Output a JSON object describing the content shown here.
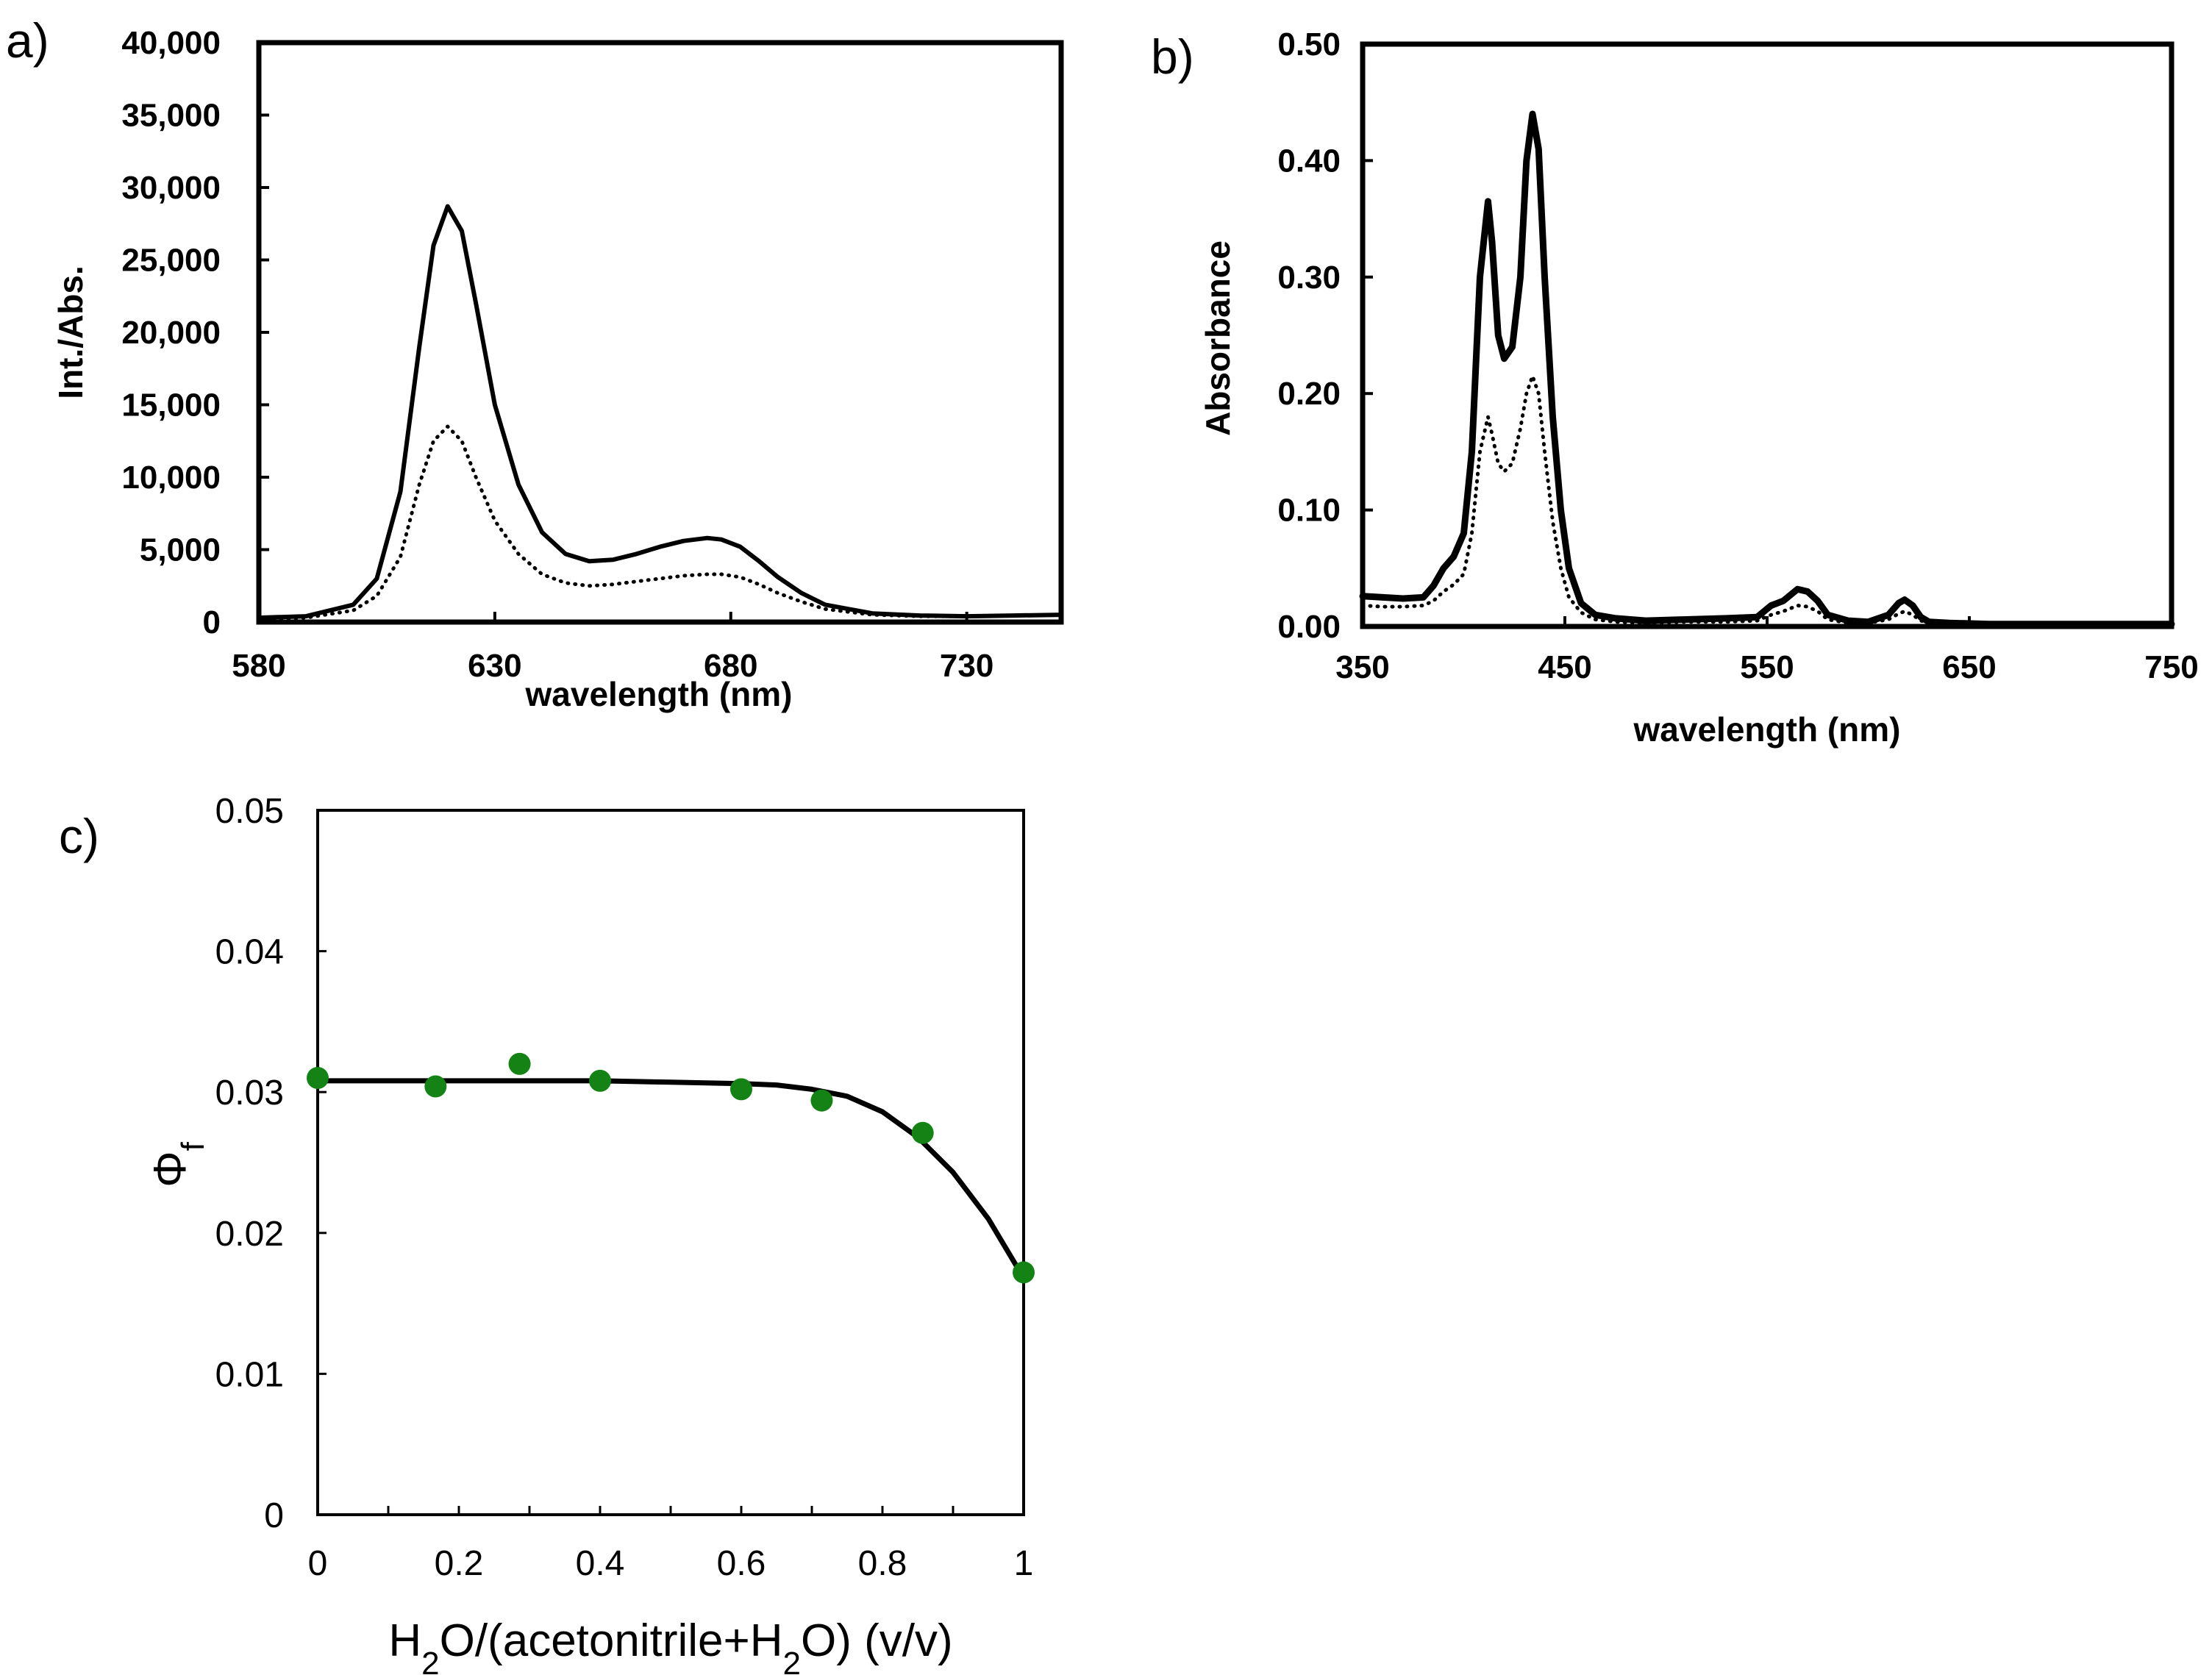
{
  "chart_data": [
    {
      "panel": "a)",
      "type": "line",
      "title": "",
      "xlabel": "wavelength (nm)",
      "ylabel": "Int./Abs.",
      "xlim": [
        580,
        750
      ],
      "ylim": [
        0,
        40000
      ],
      "xticks": [
        580,
        630,
        680,
        730
      ],
      "xtick_labels": [
        "580",
        "630",
        "680",
        "730"
      ],
      "yticks": [
        0,
        5000,
        10000,
        15000,
        20000,
        25000,
        30000,
        35000,
        40000
      ],
      "ytick_labels": [
        "0",
        "5,000",
        "10,000",
        "15,000",
        "20,000",
        "25,000",
        "30,000",
        "35,000",
        "40,000"
      ],
      "series": [
        {
          "name": "solid",
          "style": "solid",
          "x": [
            580,
            590,
            600,
            605,
            610,
            614,
            617,
            620,
            623,
            626,
            630,
            635,
            640,
            645,
            650,
            655,
            660,
            665,
            670,
            675,
            678,
            682,
            686,
            690,
            695,
            700,
            710,
            720,
            730,
            740,
            750
          ],
          "y": [
            300,
            400,
            1200,
            3000,
            9000,
            19000,
            26000,
            28700,
            27000,
            22000,
            15000,
            9500,
            6200,
            4700,
            4200,
            4300,
            4700,
            5200,
            5600,
            5800,
            5700,
            5200,
            4200,
            3100,
            2000,
            1200,
            600,
            450,
            400,
            450,
            500
          ]
        },
        {
          "name": "dotted",
          "style": "dotted",
          "x": [
            580,
            590,
            600,
            605,
            610,
            614,
            617,
            620,
            623,
            626,
            630,
            635,
            640,
            645,
            650,
            655,
            660,
            665,
            670,
            675,
            678,
            682,
            686,
            690,
            695,
            700,
            710,
            720,
            730,
            740,
            750
          ],
          "y": [
            200,
            300,
            800,
            1800,
            4500,
            9500,
            12500,
            13500,
            12500,
            10000,
            7000,
            4700,
            3300,
            2700,
            2500,
            2600,
            2800,
            3000,
            3200,
            3300,
            3300,
            3100,
            2600,
            2000,
            1400,
            900,
            500,
            400,
            400,
            450,
            500
          ]
        }
      ]
    },
    {
      "panel": "b)",
      "type": "line",
      "title": "",
      "xlabel": "wavelength (nm)",
      "ylabel": "Absorbance",
      "xlim": [
        350,
        750
      ],
      "ylim": [
        0,
        0.5
      ],
      "xticks": [
        350,
        450,
        550,
        650,
        750
      ],
      "xtick_labels": [
        "350",
        "450",
        "550",
        "650",
        "750"
      ],
      "yticks": [
        0,
        0.1,
        0.2,
        0.3,
        0.4,
        0.5
      ],
      "ytick_labels": [
        "0.00",
        "0.10",
        "0.20",
        "0.30",
        "0.40",
        "0.50"
      ],
      "series": [
        {
          "name": "solid",
          "style": "solid",
          "x": [
            350,
            360,
            370,
            380,
            385,
            390,
            395,
            400,
            404,
            408,
            412,
            414,
            417,
            420,
            424,
            428,
            431,
            434,
            437,
            440,
            444,
            448,
            452,
            458,
            465,
            475,
            490,
            510,
            530,
            545,
            552,
            558,
            565,
            570,
            575,
            580,
            590,
            600,
            610,
            615,
            618,
            622,
            626,
            630,
            640,
            660,
            700,
            750
          ],
          "y": [
            0.026,
            0.025,
            0.024,
            0.025,
            0.035,
            0.05,
            0.06,
            0.08,
            0.15,
            0.3,
            0.365,
            0.33,
            0.25,
            0.23,
            0.24,
            0.3,
            0.4,
            0.44,
            0.41,
            0.3,
            0.18,
            0.1,
            0.05,
            0.02,
            0.01,
            0.007,
            0.005,
            0.006,
            0.007,
            0.008,
            0.018,
            0.022,
            0.032,
            0.03,
            0.022,
            0.01,
            0.005,
            0.004,
            0.01,
            0.02,
            0.023,
            0.018,
            0.008,
            0.004,
            0.003,
            0.002,
            0.002,
            0.002
          ]
        },
        {
          "name": "dotted",
          "style": "dotted",
          "x": [
            350,
            360,
            370,
            380,
            385,
            390,
            395,
            400,
            404,
            408,
            412,
            414,
            417,
            420,
            424,
            428,
            431,
            434,
            437,
            440,
            444,
            448,
            452,
            458,
            465,
            475,
            490,
            510,
            530,
            545,
            552,
            558,
            565,
            570,
            575,
            580,
            590,
            600,
            610,
            615,
            618,
            622,
            626,
            630,
            640,
            660,
            700,
            750
          ],
          "y": [
            0.018,
            0.017,
            0.017,
            0.018,
            0.022,
            0.03,
            0.036,
            0.045,
            0.08,
            0.15,
            0.18,
            0.165,
            0.14,
            0.133,
            0.14,
            0.17,
            0.2,
            0.215,
            0.2,
            0.15,
            0.09,
            0.05,
            0.025,
            0.012,
            0.006,
            0.004,
            0.003,
            0.004,
            0.004,
            0.005,
            0.01,
            0.013,
            0.018,
            0.017,
            0.013,
            0.006,
            0.003,
            0.003,
            0.006,
            0.011,
            0.013,
            0.01,
            0.005,
            0.003,
            0.002,
            0.002,
            0.002,
            0.002
          ]
        }
      ]
    },
    {
      "panel": "c)",
      "type": "scatter",
      "title": "",
      "xlabel_parts": [
        "H",
        "2",
        "O/(acetonitrile+H",
        "2",
        "O)  (v/v)"
      ],
      "ylabel_parts": [
        "Φ",
        "f"
      ],
      "xlim": [
        0,
        1
      ],
      "ylim": [
        0,
        0.05
      ],
      "xticks": [
        0,
        0.2,
        0.4,
        0.6,
        0.8,
        1
      ],
      "xtick_labels": [
        "0",
        "0.2",
        "0.4",
        "0.6",
        "0.8",
        "1"
      ],
      "yticks": [
        0,
        0.01,
        0.02,
        0.03,
        0.04,
        0.05
      ],
      "ytick_labels": [
        "0",
        "0.01",
        "0.02",
        "0.03",
        "0.04",
        "0.05"
      ],
      "points": {
        "x": [
          0,
          0.167,
          0.286,
          0.4,
          0.6,
          0.714,
          0.857,
          1.0
        ],
        "y": [
          0.031,
          0.0304,
          0.032,
          0.0308,
          0.0302,
          0.0294,
          0.0271,
          0.0172
        ],
        "color": "#148214"
      },
      "fit": {
        "x": [
          0,
          0.1,
          0.2,
          0.3,
          0.4,
          0.5,
          0.6,
          0.65,
          0.7,
          0.75,
          0.8,
          0.85,
          0.9,
          0.95,
          1.0
        ],
        "y": [
          0.0308,
          0.0308,
          0.0308,
          0.0308,
          0.0308,
          0.0307,
          0.0306,
          0.0305,
          0.0302,
          0.0297,
          0.0286,
          0.0268,
          0.0243,
          0.021,
          0.0168
        ]
      }
    }
  ]
}
